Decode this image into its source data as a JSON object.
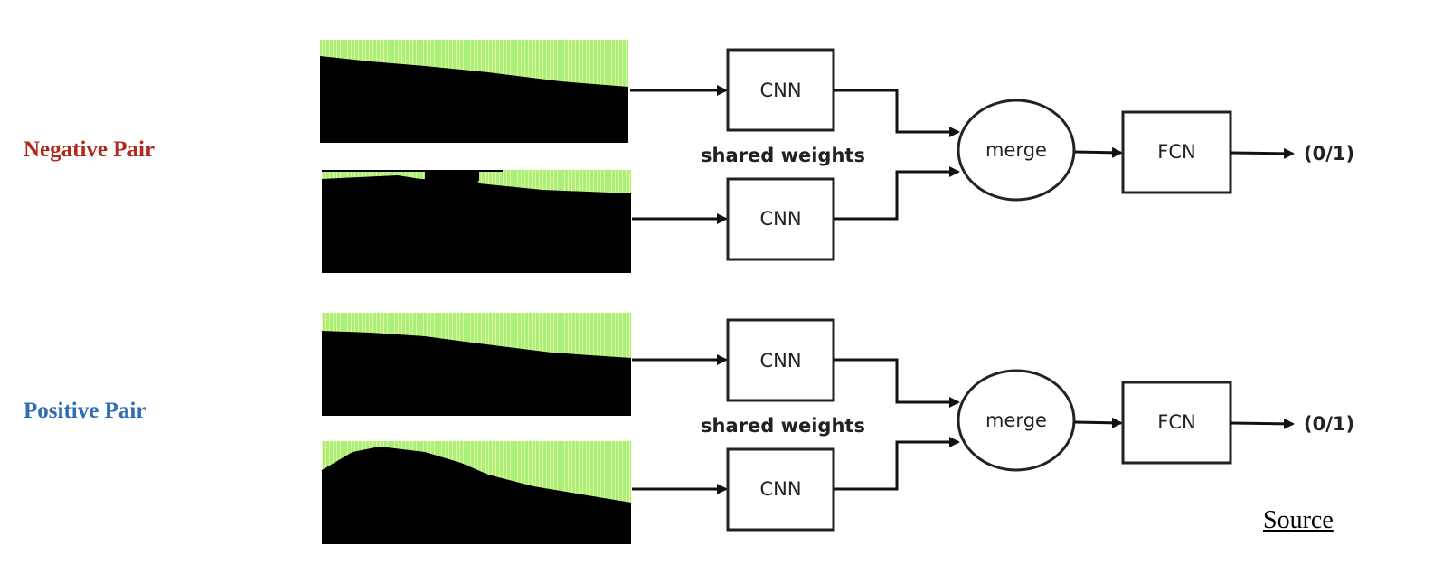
{
  "labels": {
    "negative_pair": "Negative Pair",
    "positive_pair": "Positive Pair"
  },
  "diagram": {
    "cnn_label": "CNN",
    "shared_weights_label": "shared weights",
    "merge_label": "merge",
    "fcn_label": "FCN",
    "output_label": "(0/1)"
  },
  "link": {
    "source_label": "Source"
  },
  "colors": {
    "negative": "#b0271c",
    "positive": "#2e6db4",
    "waveform": "#a8f07a",
    "waveform_background": "#000000"
  }
}
